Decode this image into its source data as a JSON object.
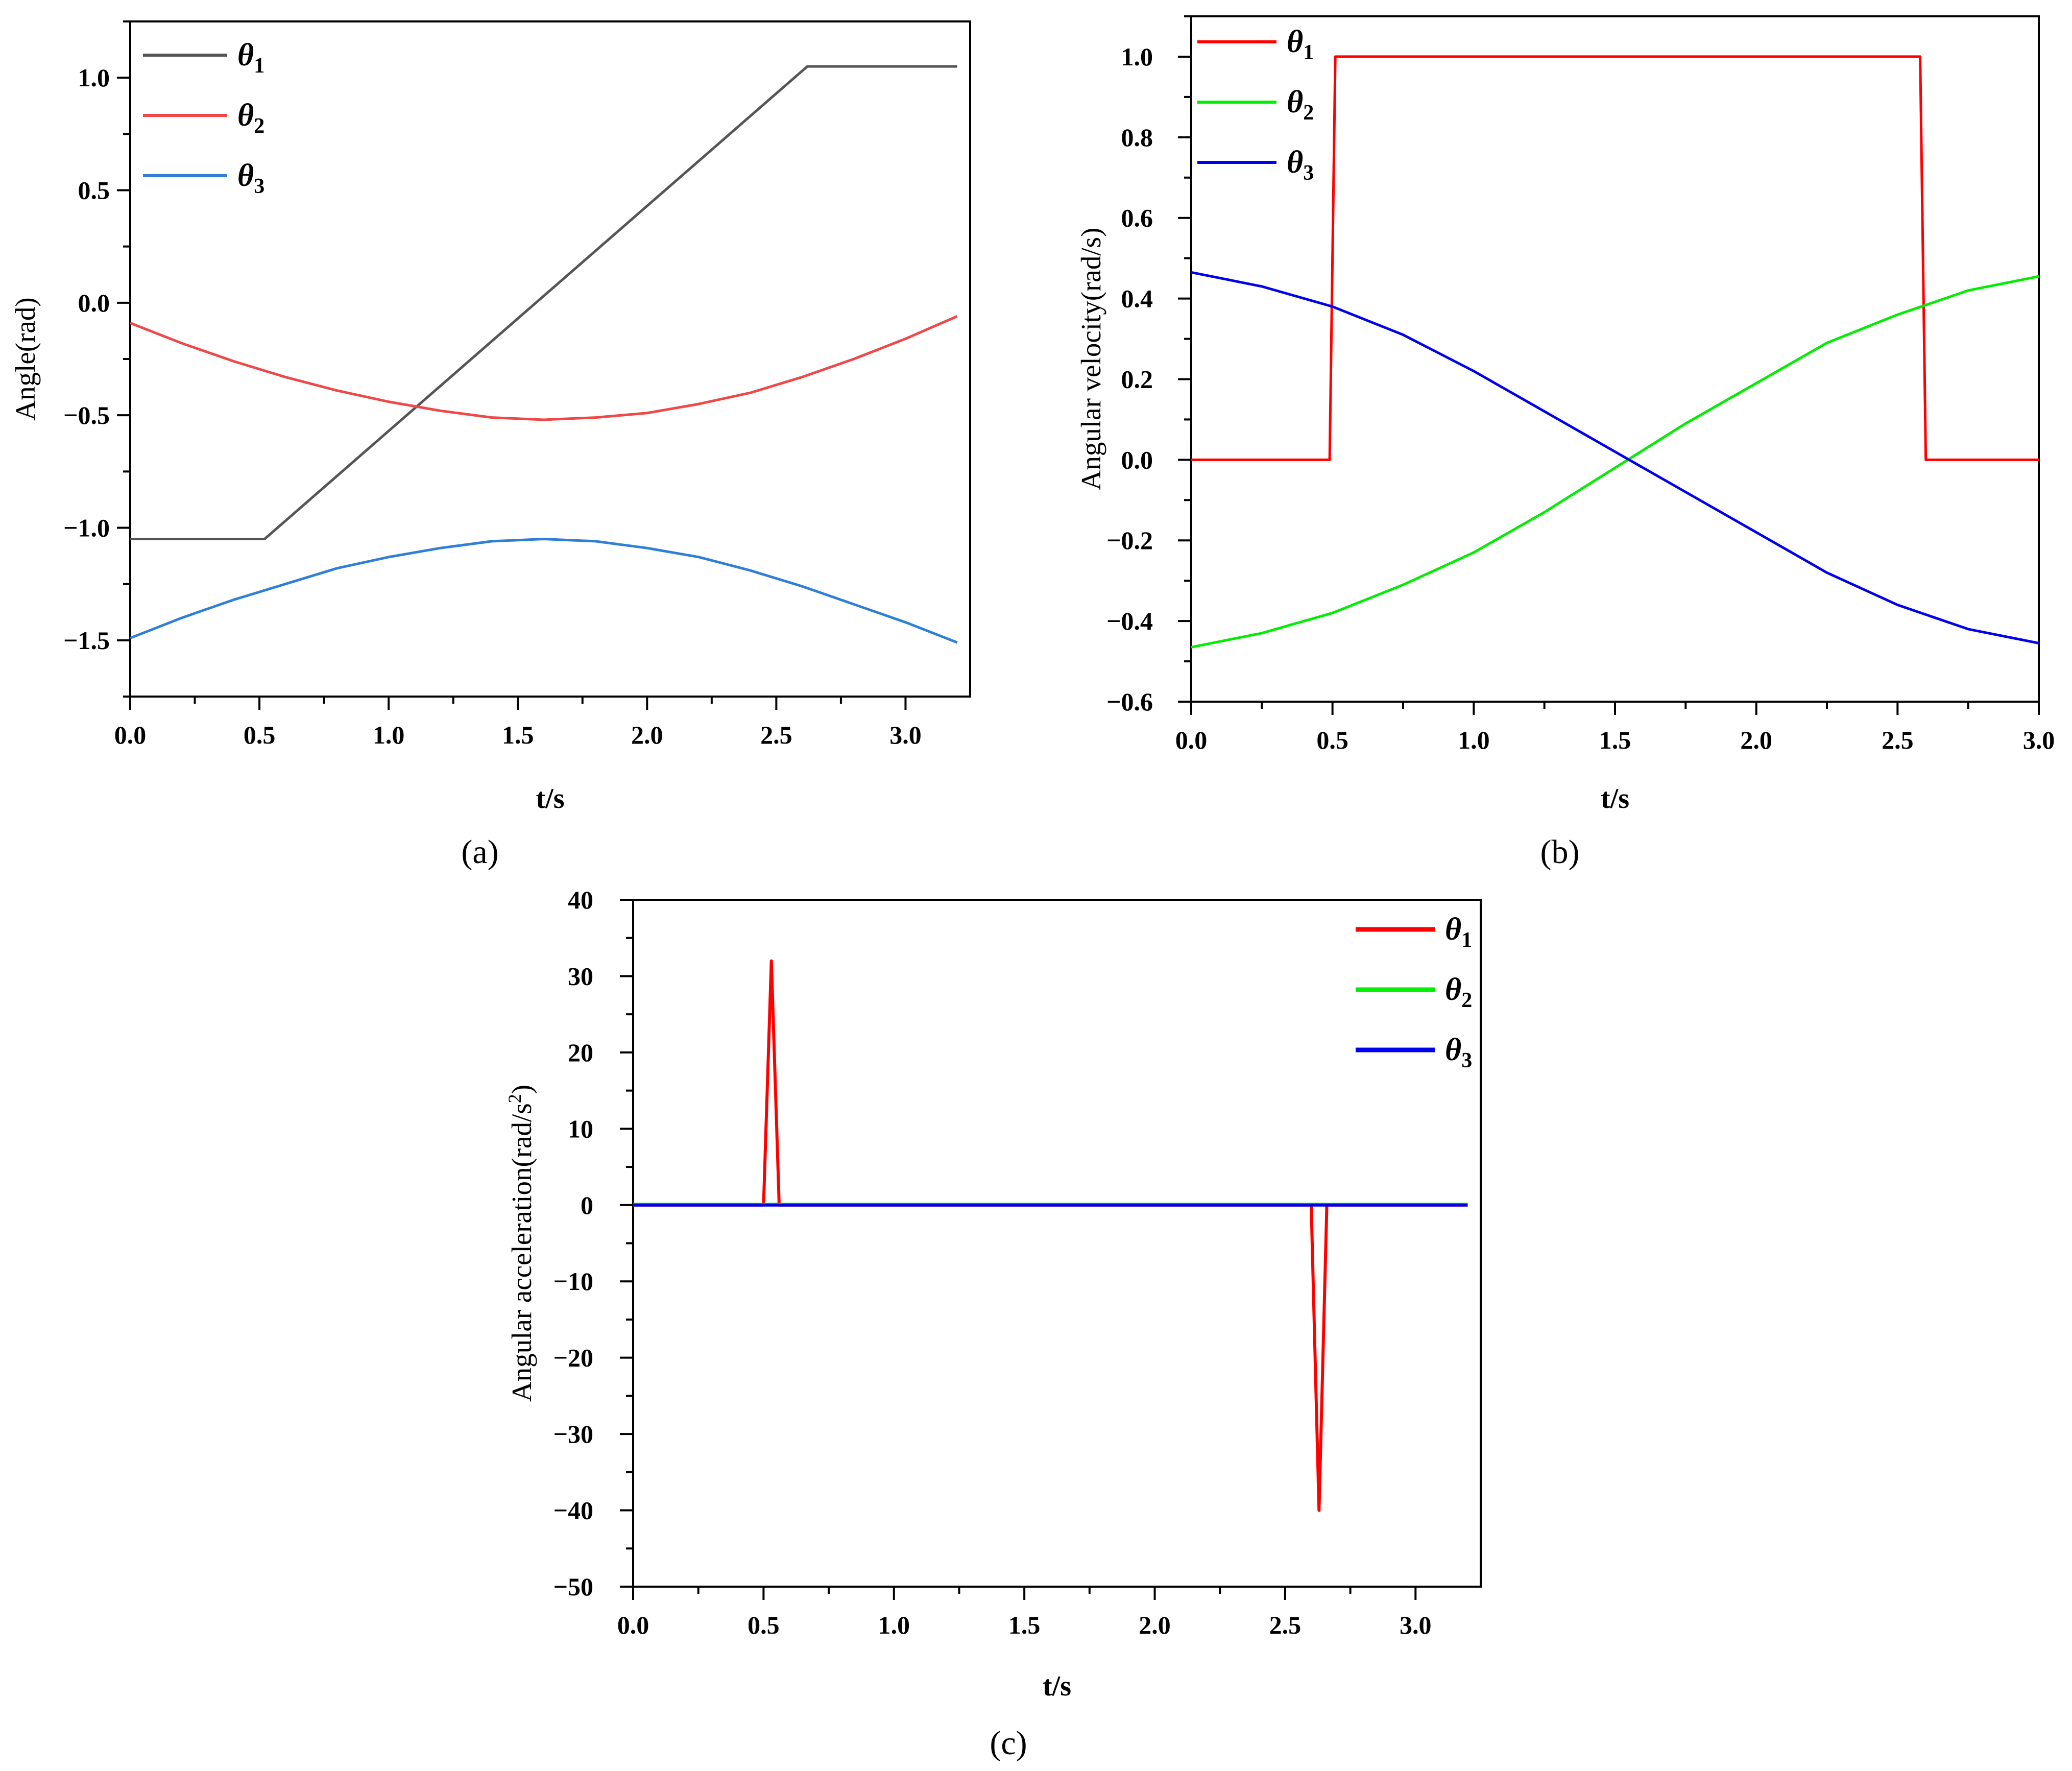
{
  "chart_data": [
    {
      "id": "a",
      "type": "line",
      "panel_label": "(a)",
      "title": "",
      "xlabel": "t/s",
      "ylabel": "Angle(rad)",
      "xlim": [
        0,
        3.25
      ],
      "ylim": [
        -1.75,
        1.25
      ],
      "xticks": [
        0,
        0.5,
        1,
        1.5,
        2,
        2.5,
        3
      ],
      "xtick_labels": [
        "0.0",
        "0.5",
        "1.0",
        "1.5",
        "2.0",
        "2.5",
        "3.0"
      ],
      "yticks": [
        -1.5,
        -1,
        -0.5,
        0,
        0.5,
        1
      ],
      "ytick_labels": [
        "−1.5",
        "−1.0",
        "−0.5",
        "0.0",
        "0.5",
        "1.0"
      ],
      "legend_position": "top-left",
      "series": [
        {
          "name": "θ",
          "sub": "1",
          "color": "#555555",
          "x": [
            0,
            0.52,
            2.62,
            3.2
          ],
          "y": [
            -1.05,
            -1.05,
            1.05,
            1.05
          ]
        },
        {
          "name": "θ",
          "sub": "2",
          "color": "#f04848",
          "x": [
            0,
            0.2,
            0.4,
            0.6,
            0.8,
            1.0,
            1.2,
            1.4,
            1.6,
            1.8,
            2.0,
            2.2,
            2.4,
            2.6,
            2.8,
            3.0,
            3.2
          ],
          "y": [
            -0.09,
            -0.18,
            -0.26,
            -0.33,
            -0.39,
            -0.44,
            -0.48,
            -0.51,
            -0.52,
            -0.51,
            -0.49,
            -0.45,
            -0.4,
            -0.33,
            -0.25,
            -0.16,
            -0.06
          ]
        },
        {
          "name": "θ",
          "sub": "3",
          "color": "#2f7fd8",
          "x": [
            0,
            0.2,
            0.4,
            0.6,
            0.8,
            1.0,
            1.2,
            1.4,
            1.6,
            1.8,
            2.0,
            2.2,
            2.4,
            2.6,
            2.8,
            3.0,
            3.2
          ],
          "y": [
            -1.49,
            -1.4,
            -1.32,
            -1.25,
            -1.18,
            -1.13,
            -1.09,
            -1.06,
            -1.05,
            -1.06,
            -1.09,
            -1.13,
            -1.19,
            -1.26,
            -1.34,
            -1.42,
            -1.51
          ]
        }
      ]
    },
    {
      "id": "b",
      "type": "line",
      "panel_label": "(b)",
      "title": "",
      "xlabel": "t/s",
      "ylabel": "Angular velocity(rad/s)",
      "xlim": [
        0,
        3
      ],
      "ylim": [
        -0.6,
        1.1
      ],
      "xticks": [
        0,
        0.5,
        1,
        1.5,
        2,
        2.5,
        3
      ],
      "xtick_labels": [
        "0.0",
        "0.5",
        "1.0",
        "1.5",
        "2.0",
        "2.5",
        "3.0"
      ],
      "yticks": [
        -0.6,
        -0.4,
        -0.2,
        0,
        0.2,
        0.4,
        0.6,
        0.8,
        1
      ],
      "ytick_labels": [
        "−0.6",
        "−0.4",
        "−0.2",
        "0.0",
        "0.2",
        "0.4",
        "0.6",
        "0.8",
        "1.0"
      ],
      "legend_position": "top-left",
      "series": [
        {
          "name": "θ",
          "sub": "1",
          "color": "#ff0000",
          "x": [
            0,
            0.49,
            0.51,
            2.58,
            2.6,
            3.0
          ],
          "y": [
            0,
            0,
            1,
            1,
            0,
            0
          ]
        },
        {
          "name": "θ",
          "sub": "2",
          "color": "#00ee00",
          "x": [
            0,
            0.25,
            0.5,
            0.75,
            1.0,
            1.25,
            1.5,
            1.75,
            2.0,
            2.25,
            2.5,
            2.75,
            3.0
          ],
          "y": [
            -0.465,
            -0.43,
            -0.38,
            -0.31,
            -0.23,
            -0.13,
            -0.02,
            0.09,
            0.19,
            0.29,
            0.36,
            0.42,
            0.455
          ]
        },
        {
          "name": "θ",
          "sub": "3",
          "color": "#0000ee",
          "x": [
            0,
            0.25,
            0.5,
            0.75,
            1.0,
            1.25,
            1.5,
            1.75,
            2.0,
            2.25,
            2.5,
            2.75,
            3.0
          ],
          "y": [
            0.465,
            0.43,
            0.38,
            0.31,
            0.22,
            0.12,
            0.02,
            -0.08,
            -0.18,
            -0.28,
            -0.36,
            -0.42,
            -0.455
          ]
        }
      ]
    },
    {
      "id": "c",
      "type": "line",
      "panel_label": "(c)",
      "title": "",
      "xlabel": "t/s",
      "ylabel": "Angular acceleration(rad/s",
      "ylabel_sup": "2",
      "ylabel_end": ")",
      "xlim": [
        0,
        3.25
      ],
      "ylim": [
        -50,
        40
      ],
      "xticks": [
        0,
        0.5,
        1,
        1.5,
        2,
        2.5,
        3
      ],
      "xtick_labels": [
        "0.0",
        "0.5",
        "1.0",
        "1.5",
        "2.0",
        "2.5",
        "3.0"
      ],
      "yticks": [
        -50,
        -40,
        -30,
        -20,
        -10,
        0,
        10,
        20,
        30,
        40
      ],
      "ytick_labels": [
        "−50",
        "−40",
        "−30",
        "−20",
        "−10",
        "0",
        "10",
        "20",
        "30",
        "40"
      ],
      "legend_position": "top-right",
      "series": [
        {
          "name": "θ",
          "sub": "1",
          "color": "#ff0000",
          "x": [
            0,
            0.5,
            0.53,
            0.56,
            2.6,
            2.63,
            2.66,
            3.2
          ],
          "y": [
            0,
            0,
            32,
            0,
            0,
            -40,
            0,
            0
          ]
        },
        {
          "name": "θ",
          "sub": "2",
          "color": "#00ee00",
          "x": [
            0,
            3.2
          ],
          "y": [
            0.1,
            0.1
          ]
        },
        {
          "name": "θ",
          "sub": "3",
          "color": "#0000ee",
          "x": [
            0,
            3.2
          ],
          "y": [
            0,
            0
          ]
        }
      ]
    }
  ]
}
